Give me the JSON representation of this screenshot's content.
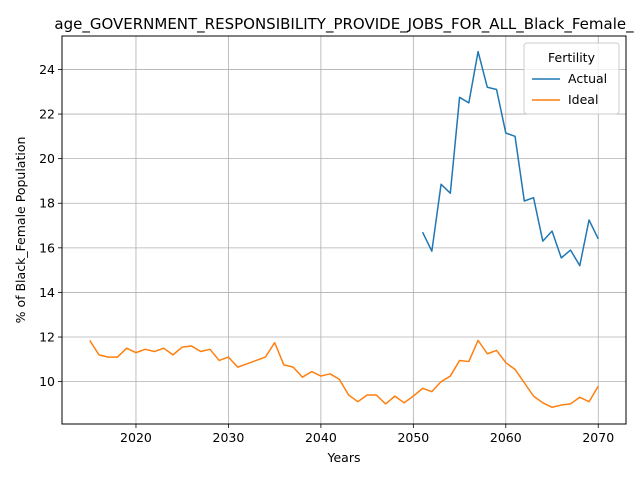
{
  "chart_data": {
    "type": "line",
    "title": "age_GOVERNMENT_RESPONSIBILITY_PROVIDE_JOBS_FOR_ALL_Black_Female_",
    "xlabel": "Years",
    "ylabel": "% of Black_Female Population",
    "xlim": [
      2012,
      2073
    ],
    "ylim": [
      8.1,
      25.5
    ],
    "xticks": [
      2020,
      2030,
      2040,
      2050,
      2060,
      2070
    ],
    "yticks": [
      10,
      12,
      14,
      16,
      18,
      20,
      22,
      24
    ],
    "grid": true,
    "legend": {
      "title": "Fertility",
      "position": "top-right"
    },
    "series": [
      {
        "name": "Actual",
        "color": "#1f77b4",
        "x": [
          2051,
          2052,
          2053,
          2054,
          2055,
          2056,
          2057,
          2058,
          2059,
          2060,
          2061,
          2062,
          2063,
          2064,
          2065,
          2066,
          2067,
          2068,
          2069,
          2070
        ],
        "y": [
          16.7,
          15.85,
          18.85,
          18.45,
          22.75,
          22.5,
          24.8,
          23.2,
          23.1,
          21.15,
          21.0,
          18.1,
          18.25,
          16.3,
          16.75,
          15.55,
          15.9,
          15.2,
          17.25,
          16.4
        ]
      },
      {
        "name": "Ideal",
        "color": "#ff7f0e",
        "x": [
          2015,
          2016,
          2017,
          2018,
          2019,
          2020,
          2021,
          2022,
          2023,
          2024,
          2025,
          2026,
          2027,
          2028,
          2029,
          2030,
          2031,
          2032,
          2033,
          2034,
          2035,
          2036,
          2037,
          2038,
          2039,
          2040,
          2041,
          2042,
          2043,
          2044,
          2045,
          2046,
          2047,
          2048,
          2049,
          2050,
          2051,
          2052,
          2053,
          2054,
          2055,
          2056,
          2057,
          2058,
          2059,
          2060,
          2061,
          2062,
          2063,
          2064,
          2065,
          2066,
          2067,
          2068,
          2069,
          2070
        ],
        "y": [
          11.85,
          11.2,
          11.1,
          11.1,
          11.5,
          11.3,
          11.45,
          11.35,
          11.5,
          11.2,
          11.55,
          11.6,
          11.35,
          11.45,
          10.95,
          11.1,
          10.65,
          10.8,
          10.95,
          11.1,
          11.75,
          10.75,
          10.65,
          10.2,
          10.45,
          10.25,
          10.35,
          10.1,
          9.4,
          9.1,
          9.4,
          9.4,
          9.0,
          9.35,
          9.05,
          9.35,
          9.7,
          9.55,
          10.0,
          10.25,
          10.95,
          10.9,
          11.85,
          11.25,
          11.4,
          10.85,
          10.55,
          9.95,
          9.35,
          9.05,
          8.85,
          8.95,
          9.0,
          9.3,
          9.1,
          9.8
        ]
      }
    ]
  }
}
